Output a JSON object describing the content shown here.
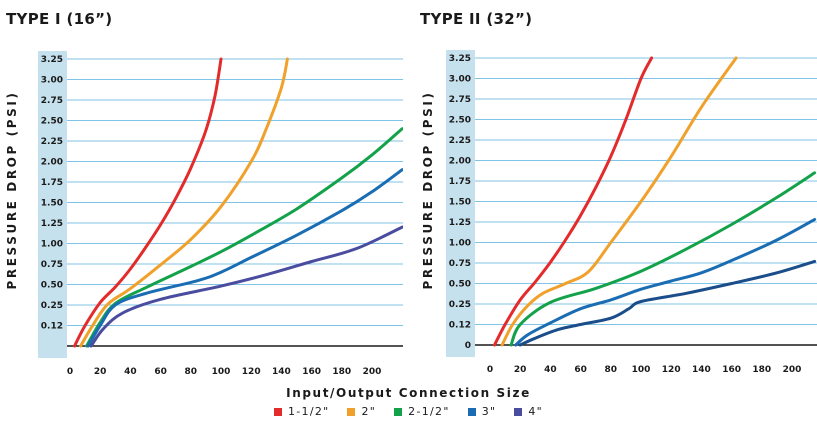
{
  "chart_data": [
    {
      "type": "line",
      "title": "TYPE I (16”)",
      "ylabel": "PRESSURE DROP (PSI)",
      "y_ticks": [
        "3.25",
        "3.00",
        "2.75",
        "2.50",
        "2.25",
        "2.00",
        "1.75",
        "1.50",
        "1.25",
        "1.00",
        "0.75",
        "0.50",
        "0.25",
        "0.12"
      ],
      "x_ticks": [
        "0",
        "20",
        "40",
        "60",
        "80",
        "100",
        "120",
        "140",
        "160",
        "180",
        "200"
      ],
      "xlim": [
        0,
        220
      ],
      "ylim": [
        0,
        3.35
      ],
      "grid": true,
      "series": [
        {
          "name": "1-1/2\"",
          "color": "#e32b2b",
          "points": [
            [
              3,
              0
            ],
            [
              10,
              0.12
            ],
            [
              20,
              0.28
            ],
            [
              30,
              0.47
            ],
            [
              40,
              0.69
            ],
            [
              50,
              0.95
            ],
            [
              60,
              1.23
            ],
            [
              70,
              1.55
            ],
            [
              80,
              1.92
            ],
            [
              90,
              2.38
            ],
            [
              96,
              2.8
            ],
            [
              100,
              3.25
            ]
          ]
        },
        {
          "name": "2\"",
          "color": "#f0a12c",
          "points": [
            [
              7,
              0
            ],
            [
              15,
              0.12
            ],
            [
              25,
              0.26
            ],
            [
              40,
              0.45
            ],
            [
              60,
              0.74
            ],
            [
              80,
              1.05
            ],
            [
              100,
              1.45
            ],
            [
              120,
              2.0
            ],
            [
              130,
              2.4
            ],
            [
              140,
              2.9
            ],
            [
              144,
              3.25
            ]
          ]
        },
        {
          "name": "2-1/2\"",
          "color": "#13a24a",
          "points": [
            [
              11,
              0
            ],
            [
              20,
              0.14
            ],
            [
              30,
              0.27
            ],
            [
              50,
              0.46
            ],
            [
              80,
              0.72
            ],
            [
              100,
              0.9
            ],
            [
              120,
              1.1
            ],
            [
              150,
              1.42
            ],
            [
              180,
              1.8
            ],
            [
              200,
              2.08
            ],
            [
              220,
              2.4
            ]
          ]
        },
        {
          "name": "3\"",
          "color": "#1a6db3",
          "points": [
            [
              12,
              0
            ],
            [
              20,
              0.12
            ],
            [
              30,
              0.25
            ],
            [
              50,
              0.39
            ],
            [
              85,
              0.55
            ],
            [
              100,
              0.65
            ],
            [
              120,
              0.83
            ],
            [
              150,
              1.1
            ],
            [
              180,
              1.4
            ],
            [
              200,
              1.63
            ],
            [
              220,
              1.9
            ]
          ]
        },
        {
          "name": "4\"",
          "color": "#4a4c9f",
          "points": [
            [
              14,
              0
            ],
            [
              22,
              0.1
            ],
            [
              35,
              0.2
            ],
            [
              60,
              0.32
            ],
            [
              100,
              0.48
            ],
            [
              130,
              0.62
            ],
            [
              160,
              0.78
            ],
            [
              190,
              0.94
            ],
            [
              220,
              1.2
            ]
          ]
        }
      ]
    },
    {
      "type": "line",
      "title": "TYPE II (32”)",
      "ylabel": "PRESSURE DROP (PSI)",
      "y_ticks": [
        "3.25",
        "3.00",
        "2.75",
        "2.50",
        "2.25",
        "2.00",
        "1.75",
        "1.50",
        "1.25",
        "1.00",
        "0.75",
        "0.50",
        "0.25",
        "0.12",
        "0"
      ],
      "x_ticks": [
        "0",
        "20",
        "40",
        "60",
        "80",
        "100",
        "120",
        "140",
        "160",
        "180",
        "200"
      ],
      "xlim": [
        0,
        215
      ],
      "ylim": [
        0,
        3.35
      ],
      "grid": true,
      "series": [
        {
          "name": "1-1/2\"",
          "color": "#e32b2b",
          "points": [
            [
              3,
              0
            ],
            [
              10,
              0.12
            ],
            [
              20,
              0.3
            ],
            [
              30,
              0.52
            ],
            [
              40,
              0.76
            ],
            [
              50,
              1.03
            ],
            [
              60,
              1.33
            ],
            [
              70,
              1.67
            ],
            [
              80,
              2.05
            ],
            [
              90,
              2.5
            ],
            [
              100,
              3.0
            ],
            [
              107,
              3.25
            ]
          ]
        },
        {
          "name": "2\"",
          "color": "#f0a12c",
          "points": [
            [
              8,
              0
            ],
            [
              15,
              0.12
            ],
            [
              25,
              0.24
            ],
            [
              35,
              0.38
            ],
            [
              50,
              0.5
            ],
            [
              65,
              0.64
            ],
            [
              80,
              1.0
            ],
            [
              100,
              1.5
            ],
            [
              120,
              2.05
            ],
            [
              140,
              2.65
            ],
            [
              163,
              3.25
            ]
          ]
        },
        {
          "name": "2-1/2\"",
          "color": "#13a24a",
          "points": [
            [
              14,
              0
            ],
            [
              20,
              0.12
            ],
            [
              40,
              0.27
            ],
            [
              70,
              0.44
            ],
            [
              100,
              0.65
            ],
            [
              130,
              0.92
            ],
            [
              160,
              1.22
            ],
            [
              190,
              1.55
            ],
            [
              215,
              1.85
            ]
          ]
        },
        {
          "name": "3\"",
          "color": "#1a6db3",
          "points": [
            [
              17,
              0
            ],
            [
              25,
              0.06
            ],
            [
              40,
              0.13
            ],
            [
              60,
              0.22
            ],
            [
              80,
              0.3
            ],
            [
              100,
              0.43
            ],
            [
              120,
              0.53
            ],
            [
              140,
              0.63
            ],
            [
              160,
              0.78
            ],
            [
              190,
              1.03
            ],
            [
              215,
              1.28
            ]
          ]
        },
        {
          "name": "4\"",
          "color": "#1a4d8a",
          "points": [
            [
              20,
              0
            ],
            [
              30,
              0.04
            ],
            [
              45,
              0.09
            ],
            [
              60,
              0.12
            ],
            [
              80,
              0.16
            ],
            [
              92,
              0.22
            ],
            [
              100,
              0.28
            ],
            [
              130,
              0.38
            ],
            [
              160,
              0.5
            ],
            [
              190,
              0.63
            ],
            [
              215,
              0.77
            ]
          ]
        }
      ]
    }
  ],
  "shared_xlabel": "Input/Output Connection Size",
  "legend": [
    {
      "label": "1-1/2\"",
      "color": "#e32b2b"
    },
    {
      "label": "2\"",
      "color": "#f0a12c"
    },
    {
      "label": "2-1/2\"",
      "color": "#13a24a"
    },
    {
      "label": "3\"",
      "color": "#1a6db3"
    },
    {
      "label": "4\"",
      "color": "#4a4c9f"
    }
  ]
}
